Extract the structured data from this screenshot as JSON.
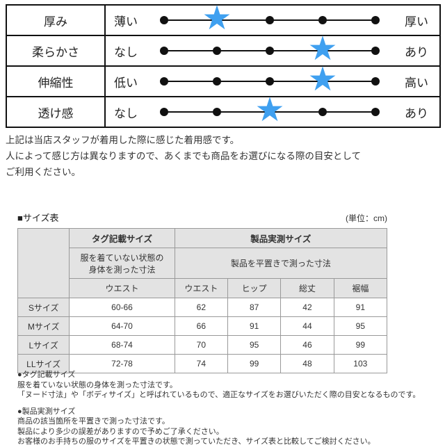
{
  "feel_table": {
    "scale_points": 5,
    "star_color": "#3FA0F0",
    "rows": [
      {
        "attribute": "厚み",
        "min": "薄い",
        "max": "厚い",
        "position": 2
      },
      {
        "attribute": "柔らかさ",
        "min": "なし",
        "max": "あり",
        "position": 4
      },
      {
        "attribute": "伸縮性",
        "min": "低い",
        "max": "高い",
        "position": 4
      },
      {
        "attribute": "透け感",
        "min": "なし",
        "max": "あり",
        "position": 3
      }
    ]
  },
  "notes": {
    "line1": "上記は当店スタッフが着用した際に感じた着用感です。",
    "line2": "人によって感じ方は異なりますので、あくまでも商品をお選びになる際の目安として",
    "line3": "ご利用ください。"
  },
  "size_section": {
    "title": "■サイズ表",
    "unit": "(単位：cm)",
    "header": {
      "tag_size": "タグ記載サイズ",
      "measured_size": "製品実測サイズ",
      "tag_desc_line1": "服を着ていない状態の",
      "tag_desc_line2": "身体を測った寸法",
      "measured_desc": "製品を平置きで測った寸法",
      "columns": [
        "ウエスト",
        "ウエスト",
        "ヒップ",
        "総丈",
        "裾幅"
      ]
    },
    "rows": [
      {
        "label": "Sサイズ",
        "tag_waist": "60-66",
        "waist": "62",
        "hip": "87",
        "length": "42",
        "hem": "91"
      },
      {
        "label": "Mサイズ",
        "tag_waist": "64-70",
        "waist": "66",
        "hip": "91",
        "length": "44",
        "hem": "95"
      },
      {
        "label": "Lサイズ",
        "tag_waist": "68-74",
        "waist": "70",
        "hip": "95",
        "length": "46",
        "hem": "99"
      },
      {
        "label": "LLサイズ",
        "tag_waist": "72-78",
        "waist": "74",
        "hip": "99",
        "length": "48",
        "hem": "103"
      }
    ]
  },
  "footnotes": {
    "tag_head": "●タグ記載サイズ",
    "tag_line1": "服を着ていない状態の身体を測った寸法です。",
    "tag_line2": "「ヌード寸法」や「ボディサイズ」と呼ばれているもので、適正なサイズをお選びいただく際の目安となるものです。",
    "measured_head": "●製品実測サイズ",
    "measured_line1": "商品の該当箇所を平置きで測った寸法です。",
    "measured_line2": "製品により多少の誤差がありますので予めご了承ください。",
    "measured_line3": "お客様のお手持ちの服のサイズを平置きの状態で測っていただき、サイズ表と比較してご検討ください。"
  }
}
